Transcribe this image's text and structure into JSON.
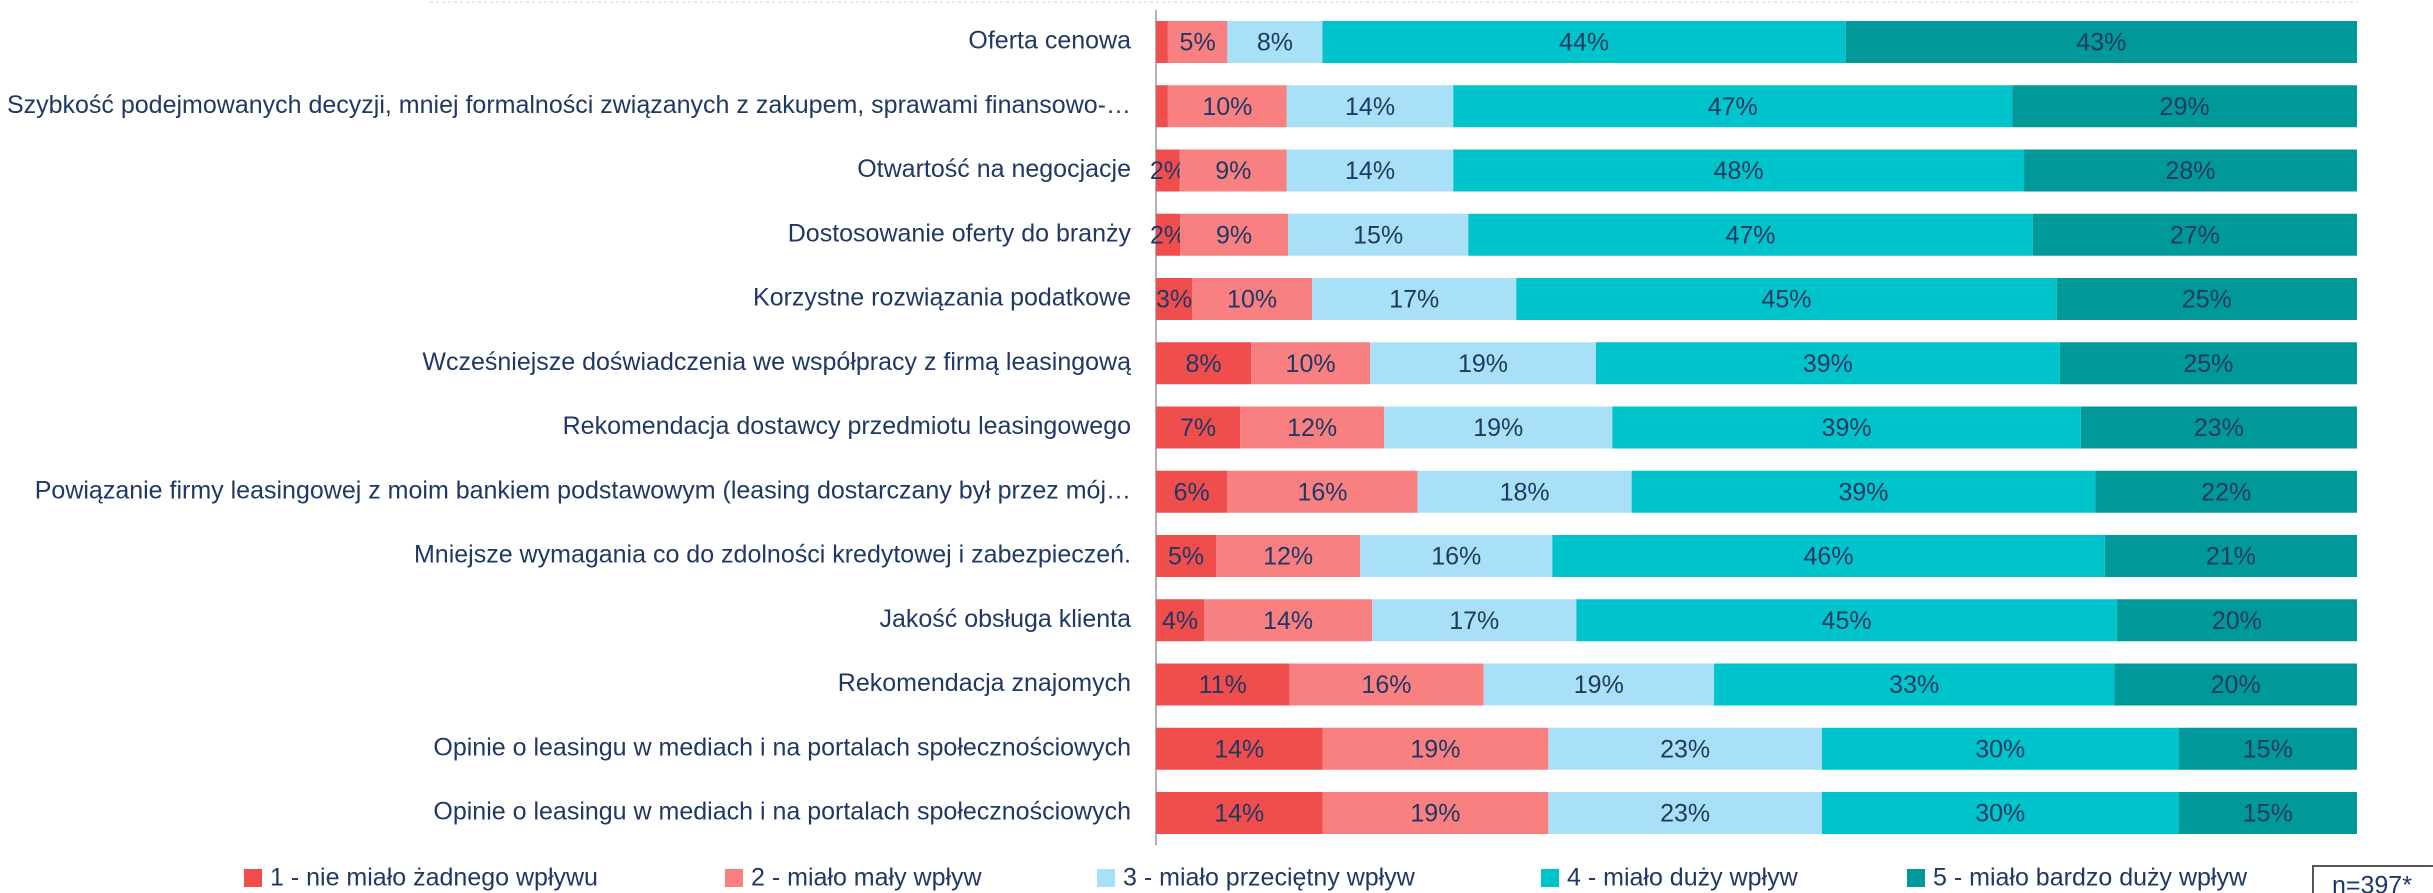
{
  "chart_data": {
    "type": "stacked_bar_horizontal",
    "categories": [
      "Oferta cenowa",
      "Szybkość podejmowanych decyzji, mniej formalności związanych z zakupem, sprawami finansowo-…",
      "Otwartość na negocjacje",
      "Dostosowanie oferty do branży",
      "Korzystne rozwiązania podatkowe",
      "Wcześniejsze doświadczenia we współpracy z firmą leasingową",
      "Rekomendacja dostawcy przedmiotu leasingowego",
      "Powiązanie firmy leasingowej z moim bankiem podstawowym (leasing dostarczany był przez mój…",
      "Mniejsze wymagania co do zdolności kredytowej i zabezpieczeń.",
      "Jakość obsługa klienta",
      "Rekomendacja znajomych",
      "Opinie o leasingu w mediach i na portalach społecznościowych",
      "Opinie o leasingu w mediach i na portalach społecznościowych"
    ],
    "series": [
      {
        "name": "1 - nie miało żadnego wpływu",
        "color": "#f04d4d",
        "values": [
          1,
          1,
          2,
          2,
          3,
          8,
          7,
          6,
          5,
          4,
          11,
          14,
          14
        ],
        "value_labels": [
          null,
          null,
          "2%",
          "2%",
          "3%",
          "8%",
          "7%",
          "6%",
          "5%",
          "4%",
          "11%",
          "14%",
          "14%"
        ]
      },
      {
        "name": "2 - miało mały wpływ",
        "color": "#f98080",
        "values": [
          5,
          10,
          9,
          9,
          10,
          10,
          12,
          16,
          12,
          14,
          16,
          19,
          19
        ],
        "value_labels": [
          "5%",
          "10%",
          "9%",
          "9%",
          "10%",
          "10%",
          "12%",
          "16%",
          "12%",
          "14%",
          "16%",
          "19%",
          "19%"
        ]
      },
      {
        "name": "3 - miało przeciętny wpływ",
        "color": "#a8e0f7",
        "values": [
          8,
          14,
          14,
          15,
          17,
          19,
          19,
          18,
          16,
          17,
          19,
          23,
          23
        ],
        "value_labels": [
          "8%",
          "14%",
          "14%",
          "15%",
          "17%",
          "19%",
          "19%",
          "18%",
          "16%",
          "17%",
          "19%",
          "23%",
          "23%"
        ]
      },
      {
        "name": "4 - miało duży wpływ",
        "color": "#00c4cc",
        "values": [
          44,
          47,
          48,
          47,
          45,
          39,
          39,
          39,
          46,
          45,
          33,
          30,
          30
        ],
        "value_labels": [
          "44%",
          "47%",
          "48%",
          "47%",
          "45%",
          "39%",
          "39%",
          "39%",
          "46%",
          "45%",
          "33%",
          "30%",
          "30%"
        ]
      },
      {
        "name": "5 - miało bardzo duży wpływ",
        "color": "#00999a",
        "values": [
          43,
          29,
          28,
          27,
          25,
          25,
          23,
          22,
          21,
          20,
          20,
          15,
          15
        ],
        "value_labels": [
          "43%",
          "29%",
          "28%",
          "27%",
          "25%",
          "25%",
          "23%",
          "22%",
          "21%",
          "20%",
          "20%",
          "15%",
          "15%"
        ]
      }
    ],
    "annotation": "n=397*",
    "legend": "bottom"
  }
}
